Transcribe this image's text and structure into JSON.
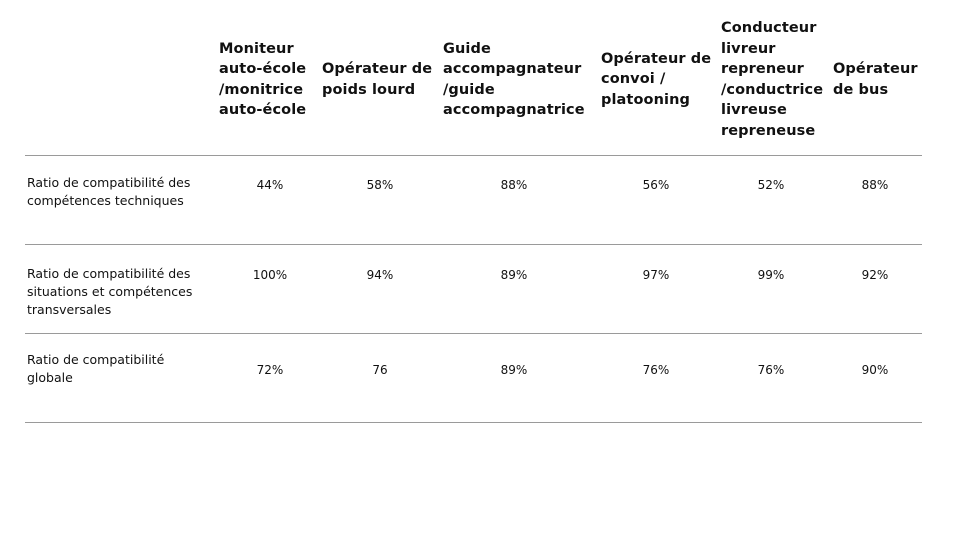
{
  "table": {
    "columns": [
      "Moniteur\nauto-école\n/monitrice\nauto-école",
      "Opérateur de\npoids lourd",
      "Guide\naccompagnateur\n/guide\naccompagnatrice",
      "Opérateur de\nconvoi /\nplatooning",
      "Conducteur\nlivreur\nrepreneur\n/conductrice\nlivreuse\nrepreneuse",
      "Opérateur\nde bus"
    ],
    "rows": [
      {
        "label": "Ratio de compatibilité des\ncompétences techniques",
        "values": [
          "44%",
          "58%",
          "88%",
          "56%",
          "52%",
          "88%"
        ]
      },
      {
        "label": "Ratio de compatibilité des\nsituations et compétences\ntransversales",
        "values": [
          "100%",
          "94%",
          "89%",
          "97%",
          "99%",
          "92%"
        ]
      },
      {
        "label": "Ratio de compatibilité\nglobale",
        "values": [
          "72%",
          "76",
          "89%",
          "76%",
          "76%",
          "90%"
        ]
      }
    ]
  }
}
